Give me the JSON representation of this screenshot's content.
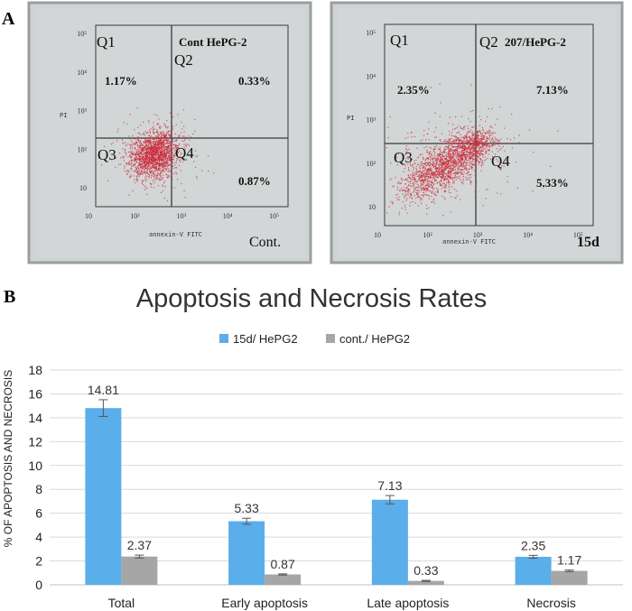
{
  "panel_a": {
    "label": "A",
    "plots": [
      {
        "id": "cont",
        "title": "Cont HePG-2",
        "tag": "Cont.",
        "x_axis_label": "annexin-V FITC",
        "y_axis_label": "PI",
        "quadrant_labels": [
          "Q1",
          "Q2",
          "Q3",
          "Q4"
        ],
        "quadrant_values": {
          "q1": "1.17%",
          "q2": "0.33%",
          "q4": "0.87%"
        },
        "x_ticks": [
          "10",
          "10²",
          "10³",
          "10⁴",
          "10⁵"
        ],
        "y_ticks": [
          "10",
          "10²",
          "10³",
          "10⁴",
          "10⁵"
        ],
        "dot_color": "#cc2a3a"
      },
      {
        "id": "15d",
        "title": "207/HePG-2",
        "tag": "15d",
        "x_axis_label": "annexin-V FITC",
        "y_axis_label": "PI",
        "quadrant_labels": [
          "Q1",
          "Q2",
          "Q3",
          "Q4"
        ],
        "quadrant_values": {
          "q1": "2.35%",
          "q2": "7.13%",
          "q4": "5.33%"
        },
        "x_ticks": [
          "10",
          "10²",
          "10³",
          "10⁴",
          "10⁵"
        ],
        "y_ticks": [
          "10",
          "10²",
          "10³",
          "10⁴",
          "10⁵"
        ],
        "dot_color": "#cc2a3a"
      }
    ]
  },
  "panel_b": {
    "label": "B"
  },
  "chart_data": {
    "type": "bar",
    "title": "Apoptosis and Necrosis Rates",
    "xlabel": "",
    "ylabel": "% OF APOPTOSIS AND NECROSIS",
    "ylim": [
      0,
      18
    ],
    "yticks": [
      0,
      2,
      4,
      6,
      8,
      10,
      12,
      14,
      16,
      18
    ],
    "grid": true,
    "legend_position": "top-center",
    "categories": [
      "Total",
      "Early apoptosis",
      "Late apoptosis",
      "Necrosis"
    ],
    "series": [
      {
        "name": "15d/ HePG2",
        "color": "#5aaeea",
        "values": [
          14.81,
          5.33,
          7.13,
          2.35
        ],
        "errors": [
          0.7,
          0.25,
          0.35,
          0.12
        ]
      },
      {
        "name": "cont./ HePG2",
        "color": "#a6a6a6",
        "values": [
          2.37,
          0.87,
          0.33,
          1.17
        ],
        "errors": [
          0.12,
          0.05,
          0.04,
          0.07
        ]
      }
    ]
  }
}
